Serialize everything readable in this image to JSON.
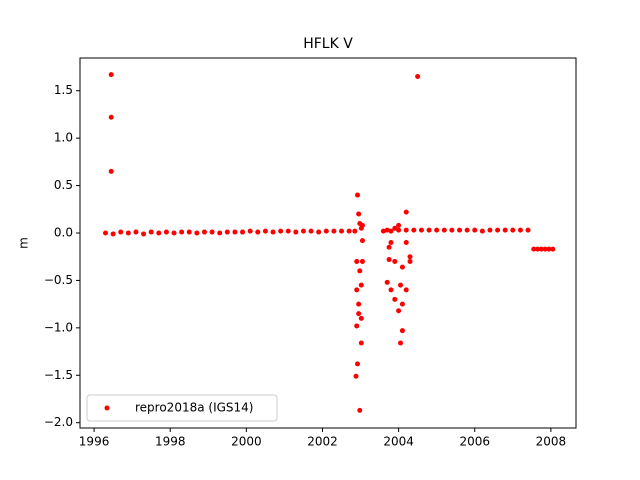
{
  "chart_data": {
    "type": "scatter",
    "title": "HFLK V",
    "y_label": "m",
    "xlim": [
      1995.63,
      2008.66
    ],
    "ylim": [
      -2.056,
      1.845
    ],
    "xticks": [
      1996,
      1998,
      2000,
      2002,
      2004,
      2006,
      2008
    ],
    "yticks": [
      {
        "value": -2,
        "label": "−2.0"
      },
      {
        "value": -1.5,
        "label": "−1.5"
      },
      {
        "value": -1,
        "label": "−1.0"
      },
      {
        "value": -0.5,
        "label": "−0.5"
      },
      {
        "value": 0,
        "label": "0.0"
      },
      0.5,
      {
        "value": 1,
        "label": "1.0"
      },
      1.5
    ],
    "legend": "lower left",
    "series": [
      {
        "name": "repro2018a (IGS14)",
        "color": "#ff0000",
        "x": [
          1996.3,
          1996.5,
          1996.7,
          1996.9,
          1997.1,
          1997.3,
          1997.5,
          1997.7,
          1997.9,
          1998.1,
          1998.3,
          1998.5,
          1998.7,
          1998.9,
          1999.1,
          1999.3,
          1999.5,
          1999.7,
          1999.9,
          2000.1,
          2000.3,
          2000.5,
          2000.7,
          2000.9,
          2001.1,
          2001.3,
          2001.5,
          2001.7,
          2001.9,
          2002.1,
          2002.3,
          2002.5,
          2002.7,
          2002.85,
          1996.45,
          1996.45,
          1996.45,
          2002.88,
          2002.9,
          2002.9,
          2002.9,
          2002.92,
          2002.92,
          2002.95,
          2002.95,
          2002.95,
          2002.98,
          2002.98,
          2002.98,
          2003.02,
          2003.02,
          2003.02,
          2003.02,
          2003.05,
          2003.05,
          2003.05,
          2003.7,
          2003.7,
          2003.75,
          2003.75,
          2003.8,
          2003.8,
          2003.9,
          2003.9,
          2003.9,
          2004.0,
          2004.0,
          2004.05,
          2004.05,
          2004.1,
          2004.1,
          2004.1,
          2004.2,
          2004.2,
          2004.2,
          2004.3,
          2004.3,
          2004.5,
          2003.6,
          2003.8,
          2004.0,
          2004.2,
          2004.4,
          2004.6,
          2004.8,
          2005.0,
          2005.2,
          2005.4,
          2005.6,
          2005.8,
          2006.0,
          2006.2,
          2006.4,
          2006.6,
          2006.8,
          2007.0,
          2007.2,
          2007.4,
          2007.55,
          2007.65,
          2007.75,
          2007.85,
          2007.95,
          2008.05
        ],
        "values": [
          0,
          -0.01,
          0.01,
          0,
          0.01,
          -0.01,
          0.01,
          0,
          0.01,
          0,
          0.01,
          0.01,
          0,
          0.01,
          0.01,
          0,
          0.01,
          0.01,
          0.01,
          0.02,
          0.01,
          0.02,
          0.01,
          0.02,
          0.02,
          0.01,
          0.02,
          0.02,
          0.01,
          0.02,
          0.02,
          0.02,
          0.02,
          0.02,
          1.67,
          1.22,
          0.65,
          -1.51,
          -0.98,
          -0.6,
          -0.3,
          -1.38,
          0.4,
          0.2,
          -0.75,
          -0.85,
          -1.87,
          0.1,
          -0.4,
          -1.16,
          -0.9,
          -0.55,
          0.05,
          -0.3,
          -0.08,
          0.08,
          -0.52,
          0.03,
          -0.28,
          -0.15,
          -0.1,
          -0.6,
          -0.3,
          -0.7,
          0.05,
          -0.82,
          0.08,
          -1.16,
          -0.55,
          -1.03,
          -0.36,
          -0.75,
          0.22,
          -0.6,
          -0.1,
          -0.3,
          -0.25,
          1.65,
          0.02,
          0.02,
          0.03,
          0.03,
          0.03,
          0.03,
          0.03,
          0.03,
          0.03,
          0.03,
          0.03,
          0.03,
          0.03,
          0.02,
          0.03,
          0.03,
          0.03,
          0.03,
          0.03,
          0.03,
          -0.17,
          -0.17,
          -0.17,
          -0.17,
          -0.17,
          -0.17
        ]
      }
    ]
  }
}
